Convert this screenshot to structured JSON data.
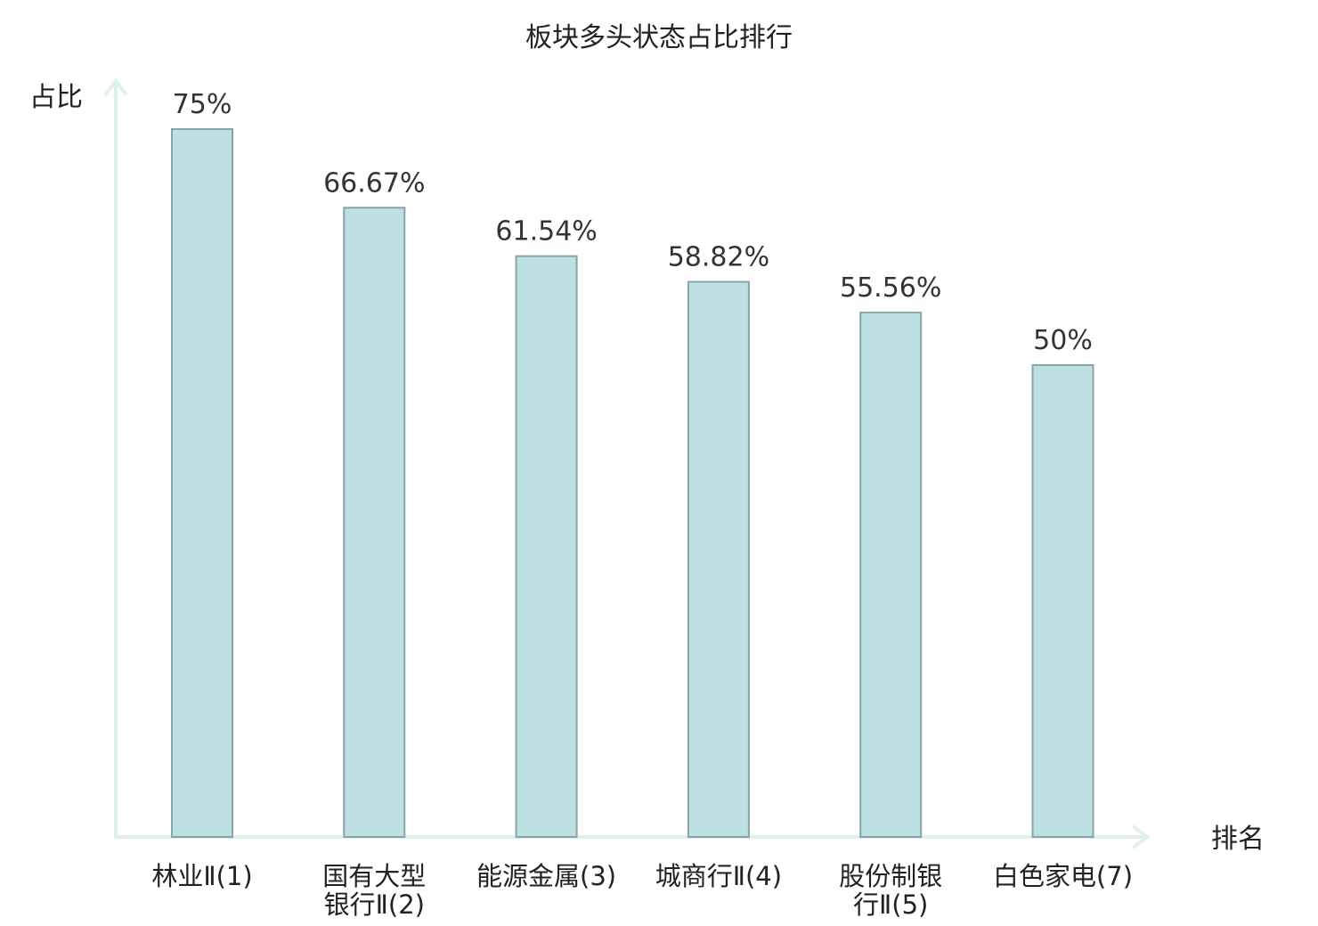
{
  "chart_data": {
    "type": "bar",
    "title": "板块多头状态占比排行",
    "ylabel": "占比",
    "xlabel": "排名",
    "ylim": [
      0,
      0.8
    ],
    "grid": false,
    "categories": [
      [
        "林业Ⅱ(1)"
      ],
      [
        "国有大型",
        "银行Ⅱ(2)"
      ],
      [
        "能源金属(3)"
      ],
      [
        "城商行Ⅱ(4)"
      ],
      [
        "股份制银",
        "行Ⅱ(5)"
      ],
      [
        "白色家电(7)"
      ]
    ],
    "values": [
      0.75,
      0.6667,
      0.6154,
      0.5882,
      0.5556,
      0.5
    ],
    "value_labels": [
      "75%",
      "66.67%",
      "61.54%",
      "58.82%",
      "55.56%",
      "50%"
    ],
    "highlight_index": 5
  },
  "colors": {
    "bar_fill": "#bde1e3",
    "bar_stroke": "#8aa3a6",
    "axis": "#dff1ef",
    "text": "#222222",
    "highlight": "#e0201b"
  }
}
